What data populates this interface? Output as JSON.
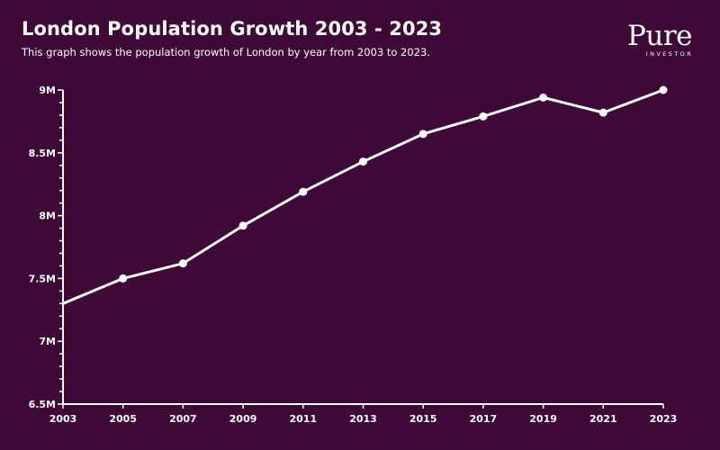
{
  "header": {
    "title": "London Population Growth 2003 - 2023",
    "subtitle": "This graph shows the population growth of London by year from 2003 to 2023."
  },
  "logo": {
    "main": "Pure",
    "sub": "INVESTOR"
  },
  "colors": {
    "background": "#3e0837",
    "line": "#ffffff"
  },
  "chart_data": {
    "type": "line",
    "title": "London Population Growth 2003 - 2023",
    "xlabel": "",
    "ylabel": "",
    "x": [
      2003,
      2005,
      2007,
      2009,
      2011,
      2013,
      2015,
      2017,
      2019,
      2021,
      2023
    ],
    "x_tick_labels": [
      "2003",
      "2005",
      "2007",
      "2009",
      "2011",
      "2013",
      "2015",
      "2017",
      "2019",
      "2021",
      "2023"
    ],
    "series": [
      {
        "name": "Population",
        "values": [
          7.3,
          7.5,
          7.62,
          7.92,
          8.19,
          8.43,
          8.65,
          8.79,
          8.94,
          8.82,
          9.0
        ]
      }
    ],
    "ylim": [
      6.5,
      9.0
    ],
    "y_ticks": [
      6.5,
      7.0,
      7.5,
      8.0,
      8.5,
      9.0
    ],
    "y_tick_labels": [
      "6.5M",
      "7M",
      "7.5M",
      "8M",
      "8.5M",
      "9M"
    ],
    "grid": false,
    "legend": "none"
  }
}
